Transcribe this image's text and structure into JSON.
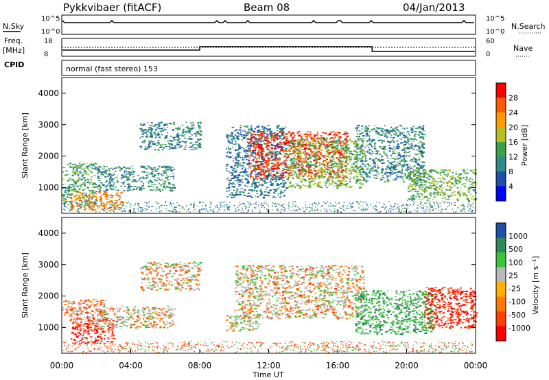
{
  "header": {
    "station": "Pykkvibaer (fitACF)",
    "beam": "Beam 08",
    "date": "04/Jan/2013"
  },
  "strip_panels": {
    "nsky_label": "N.Sky",
    "nsky_ticks": [
      "10^5",
      "10^0"
    ],
    "nsearch_label": "N.Search",
    "freq_label_1": "Freq.",
    "freq_label_2": "[MHz]",
    "freq_ticks": [
      "18",
      "8"
    ],
    "nave_label": "Nave",
    "nave_ticks": [
      "60",
      "0"
    ],
    "cpid_label": "CPID",
    "cpid_text": "normal (fast stereo) 153"
  },
  "colors": {
    "power_scale": [
      "#0000ff",
      "#1f4fa8",
      "#2f8a8a",
      "#3fa04a",
      "#b8c020",
      "#ff9a00",
      "#ff5a00",
      "#ff0000"
    ],
    "velocity_scale": [
      "#ff0000",
      "#ff4000",
      "#ff7a00",
      "#ffb000",
      "#b8b8b8",
      "#3cc43c",
      "#2e8a5a",
      "#1f4fa8"
    ],
    "grey": "#c0c0c0"
  },
  "chart_data": [
    {
      "type": "heatmap",
      "name": "power",
      "ylabel": "Slant Range [km]",
      "xlabel": "Time UT",
      "y_ticks": [
        "1000",
        "2000",
        "3000",
        "4000"
      ],
      "x_ticks": [
        "00:00",
        "04:00",
        "08:00",
        "12:00",
        "16:00",
        "20:00",
        "00:00"
      ],
      "xlim": [
        0,
        24
      ],
      "ylim": [
        180,
        4500
      ],
      "colorbar": {
        "label": "Power [dB]",
        "ticks": [
          "4",
          "8",
          "12",
          "16",
          "20",
          "24",
          "28"
        ],
        "range": [
          0,
          30
        ]
      },
      "patches": [
        {
          "t0": 0.0,
          "t1": 2.0,
          "r0": 500,
          "r1": 1800,
          "level": 12
        },
        {
          "t0": 0.5,
          "t1": 3.5,
          "r0": 300,
          "r1": 900,
          "level": 22
        },
        {
          "t0": 2.0,
          "t1": 6.5,
          "r0": 900,
          "r1": 1700,
          "level": 10
        },
        {
          "t0": 4.5,
          "t1": 8.0,
          "r0": 2200,
          "r1": 3100,
          "level": 10
        },
        {
          "t0": 9.5,
          "t1": 13.0,
          "r0": 700,
          "r1": 3000,
          "level": 8
        },
        {
          "t0": 10.8,
          "t1": 16.5,
          "r0": 1300,
          "r1": 2800,
          "level": 26
        },
        {
          "t0": 13.0,
          "t1": 17.5,
          "r0": 1000,
          "r1": 2600,
          "level": 14
        },
        {
          "t0": 17.0,
          "t1": 21.0,
          "r0": 1200,
          "r1": 3000,
          "level": 10
        },
        {
          "t0": 20.0,
          "t1": 24.0,
          "r0": 600,
          "r1": 1600,
          "level": 14
        }
      ]
    },
    {
      "type": "heatmap",
      "name": "velocity",
      "ylabel": "Slant Range [km]",
      "xlabel": "Time UT",
      "y_ticks": [
        "1000",
        "2000",
        "3000",
        "4000"
      ],
      "x_ticks": [
        "00:00",
        "04:00",
        "08:00",
        "12:00",
        "16:00",
        "20:00",
        "00:00"
      ],
      "xlim": [
        0,
        24
      ],
      "ylim": [
        180,
        4500
      ],
      "colorbar": {
        "label": "Velocity [m s⁻¹]",
        "ticks": [
          "1000",
          "500",
          "100",
          "25",
          "-25",
          "-100",
          "-500",
          "-1000"
        ],
        "range": [
          -1000,
          1000
        ]
      },
      "patches": [
        {
          "t0": 0.5,
          "t1": 3.0,
          "r0": 500,
          "r1": 1300,
          "level": -500
        },
        {
          "t0": 0.0,
          "t1": 2.5,
          "r0": 1200,
          "r1": 1900,
          "level": -100
        },
        {
          "t0": 2.0,
          "t1": 6.5,
          "r0": 1000,
          "r1": 1700,
          "level": 0
        },
        {
          "t0": 4.5,
          "t1": 8.0,
          "r0": 2200,
          "r1": 3100,
          "level": 0
        },
        {
          "t0": 10.0,
          "t1": 17.5,
          "r0": 1300,
          "r1": 3000,
          "level": 0
        },
        {
          "t0": 9.5,
          "t1": 11.5,
          "r0": 900,
          "r1": 1400,
          "level": 60
        },
        {
          "t0": 17.0,
          "t1": 21.5,
          "r0": 800,
          "r1": 2200,
          "level": 500
        },
        {
          "t0": 21.0,
          "t1": 24.0,
          "r0": 1000,
          "r1": 2300,
          "level": -500
        }
      ]
    }
  ]
}
